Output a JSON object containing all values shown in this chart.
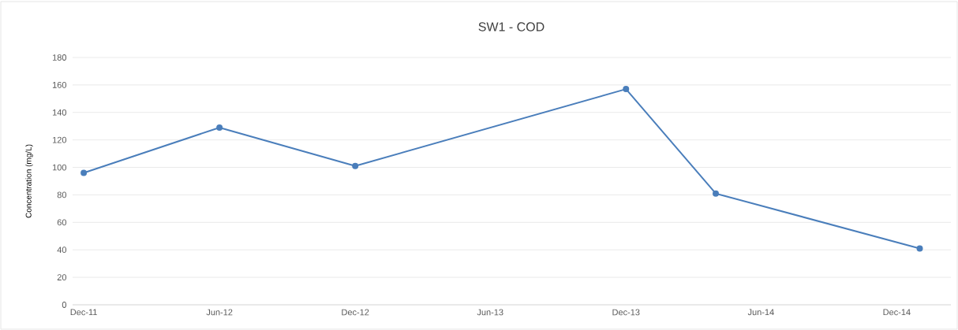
{
  "chart_data": {
    "type": "line",
    "title": "SW1 - COD",
    "ylabel": "Concentration (mg/L)",
    "x": [
      "2011-12",
      "2012-06",
      "2012-12",
      "2013-12",
      "2014-04",
      "2015-01"
    ],
    "series": [
      {
        "color": "#4a7ebb",
        "values": [
          96,
          129,
          101,
          157,
          81,
          41
        ]
      }
    ],
    "xlim": [
      "2011-11-16",
      "2015-02-12"
    ],
    "xticks": [
      {
        "value": "2011-12",
        "label": "Dec-11"
      },
      {
        "value": "2012-06",
        "label": "Jun-12"
      },
      {
        "value": "2012-12",
        "label": "Dec-12"
      },
      {
        "value": "2013-06",
        "label": "Jun-13"
      },
      {
        "value": "2013-12",
        "label": "Dec-13"
      },
      {
        "value": "2014-06",
        "label": "Jun-14"
      },
      {
        "value": "2014-12",
        "label": "Dec-14"
      }
    ],
    "ylim": [
      0,
      180
    ],
    "yticks": [
      0,
      20,
      40,
      60,
      80,
      100,
      120,
      140,
      160,
      180
    ],
    "grid": "y",
    "marker": "circle",
    "line_style": "solid"
  }
}
